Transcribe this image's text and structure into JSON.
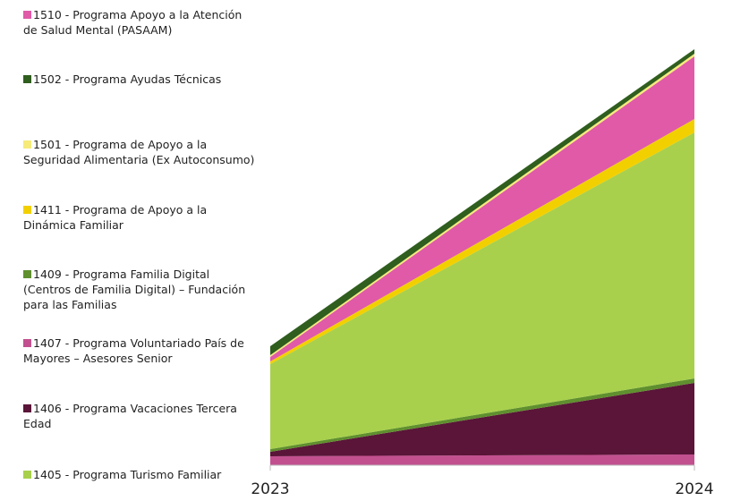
{
  "chart_data": {
    "type": "stacked_area",
    "categories": [
      "2023",
      "2024"
    ],
    "ylim": [
      0,
      470
    ],
    "series": [
      {
        "name": "1407 - Programa Voluntariado País de Mayores – Asesores Senior",
        "color": "#c2508f",
        "values": [
          10,
          12
        ]
      },
      {
        "name": "1406 - Programa Vacaciones Tercera Edad",
        "color": "#5a1538",
        "values": [
          5,
          80
        ]
      },
      {
        "name": "1409 - Programa Familia Digital (Centros de Familia Digital) – Fundación para las Familias",
        "color": "#5f8f2e",
        "values": [
          3,
          5
        ]
      },
      {
        "name": "1405 - Programa Turismo Familiar",
        "color": "#a8d04c",
        "values": [
          95,
          275
        ]
      },
      {
        "name": "1411 - Programa de Apoyo a la Dinámica Familiar",
        "color": "#f2d000",
        "values": [
          3,
          15
        ]
      },
      {
        "name": "1510 - Programa Apoyo a la Atención de Salud Mental (PASAAM)",
        "color": "#e05aa8",
        "values": [
          5,
          70
        ]
      },
      {
        "name": "1501 - Programa de Apoyo a la Seguridad Alimentaria (Ex Autoconsumo)",
        "color": "#f6ea7a",
        "values": [
          2,
          3
        ]
      },
      {
        "name": "1502 - Programa Ayudas Técnicas",
        "color": "#2f5e1e",
        "values": [
          10,
          5
        ]
      }
    ],
    "legend_order": [
      5,
      7,
      6,
      4,
      2,
      0,
      1,
      3
    ]
  }
}
